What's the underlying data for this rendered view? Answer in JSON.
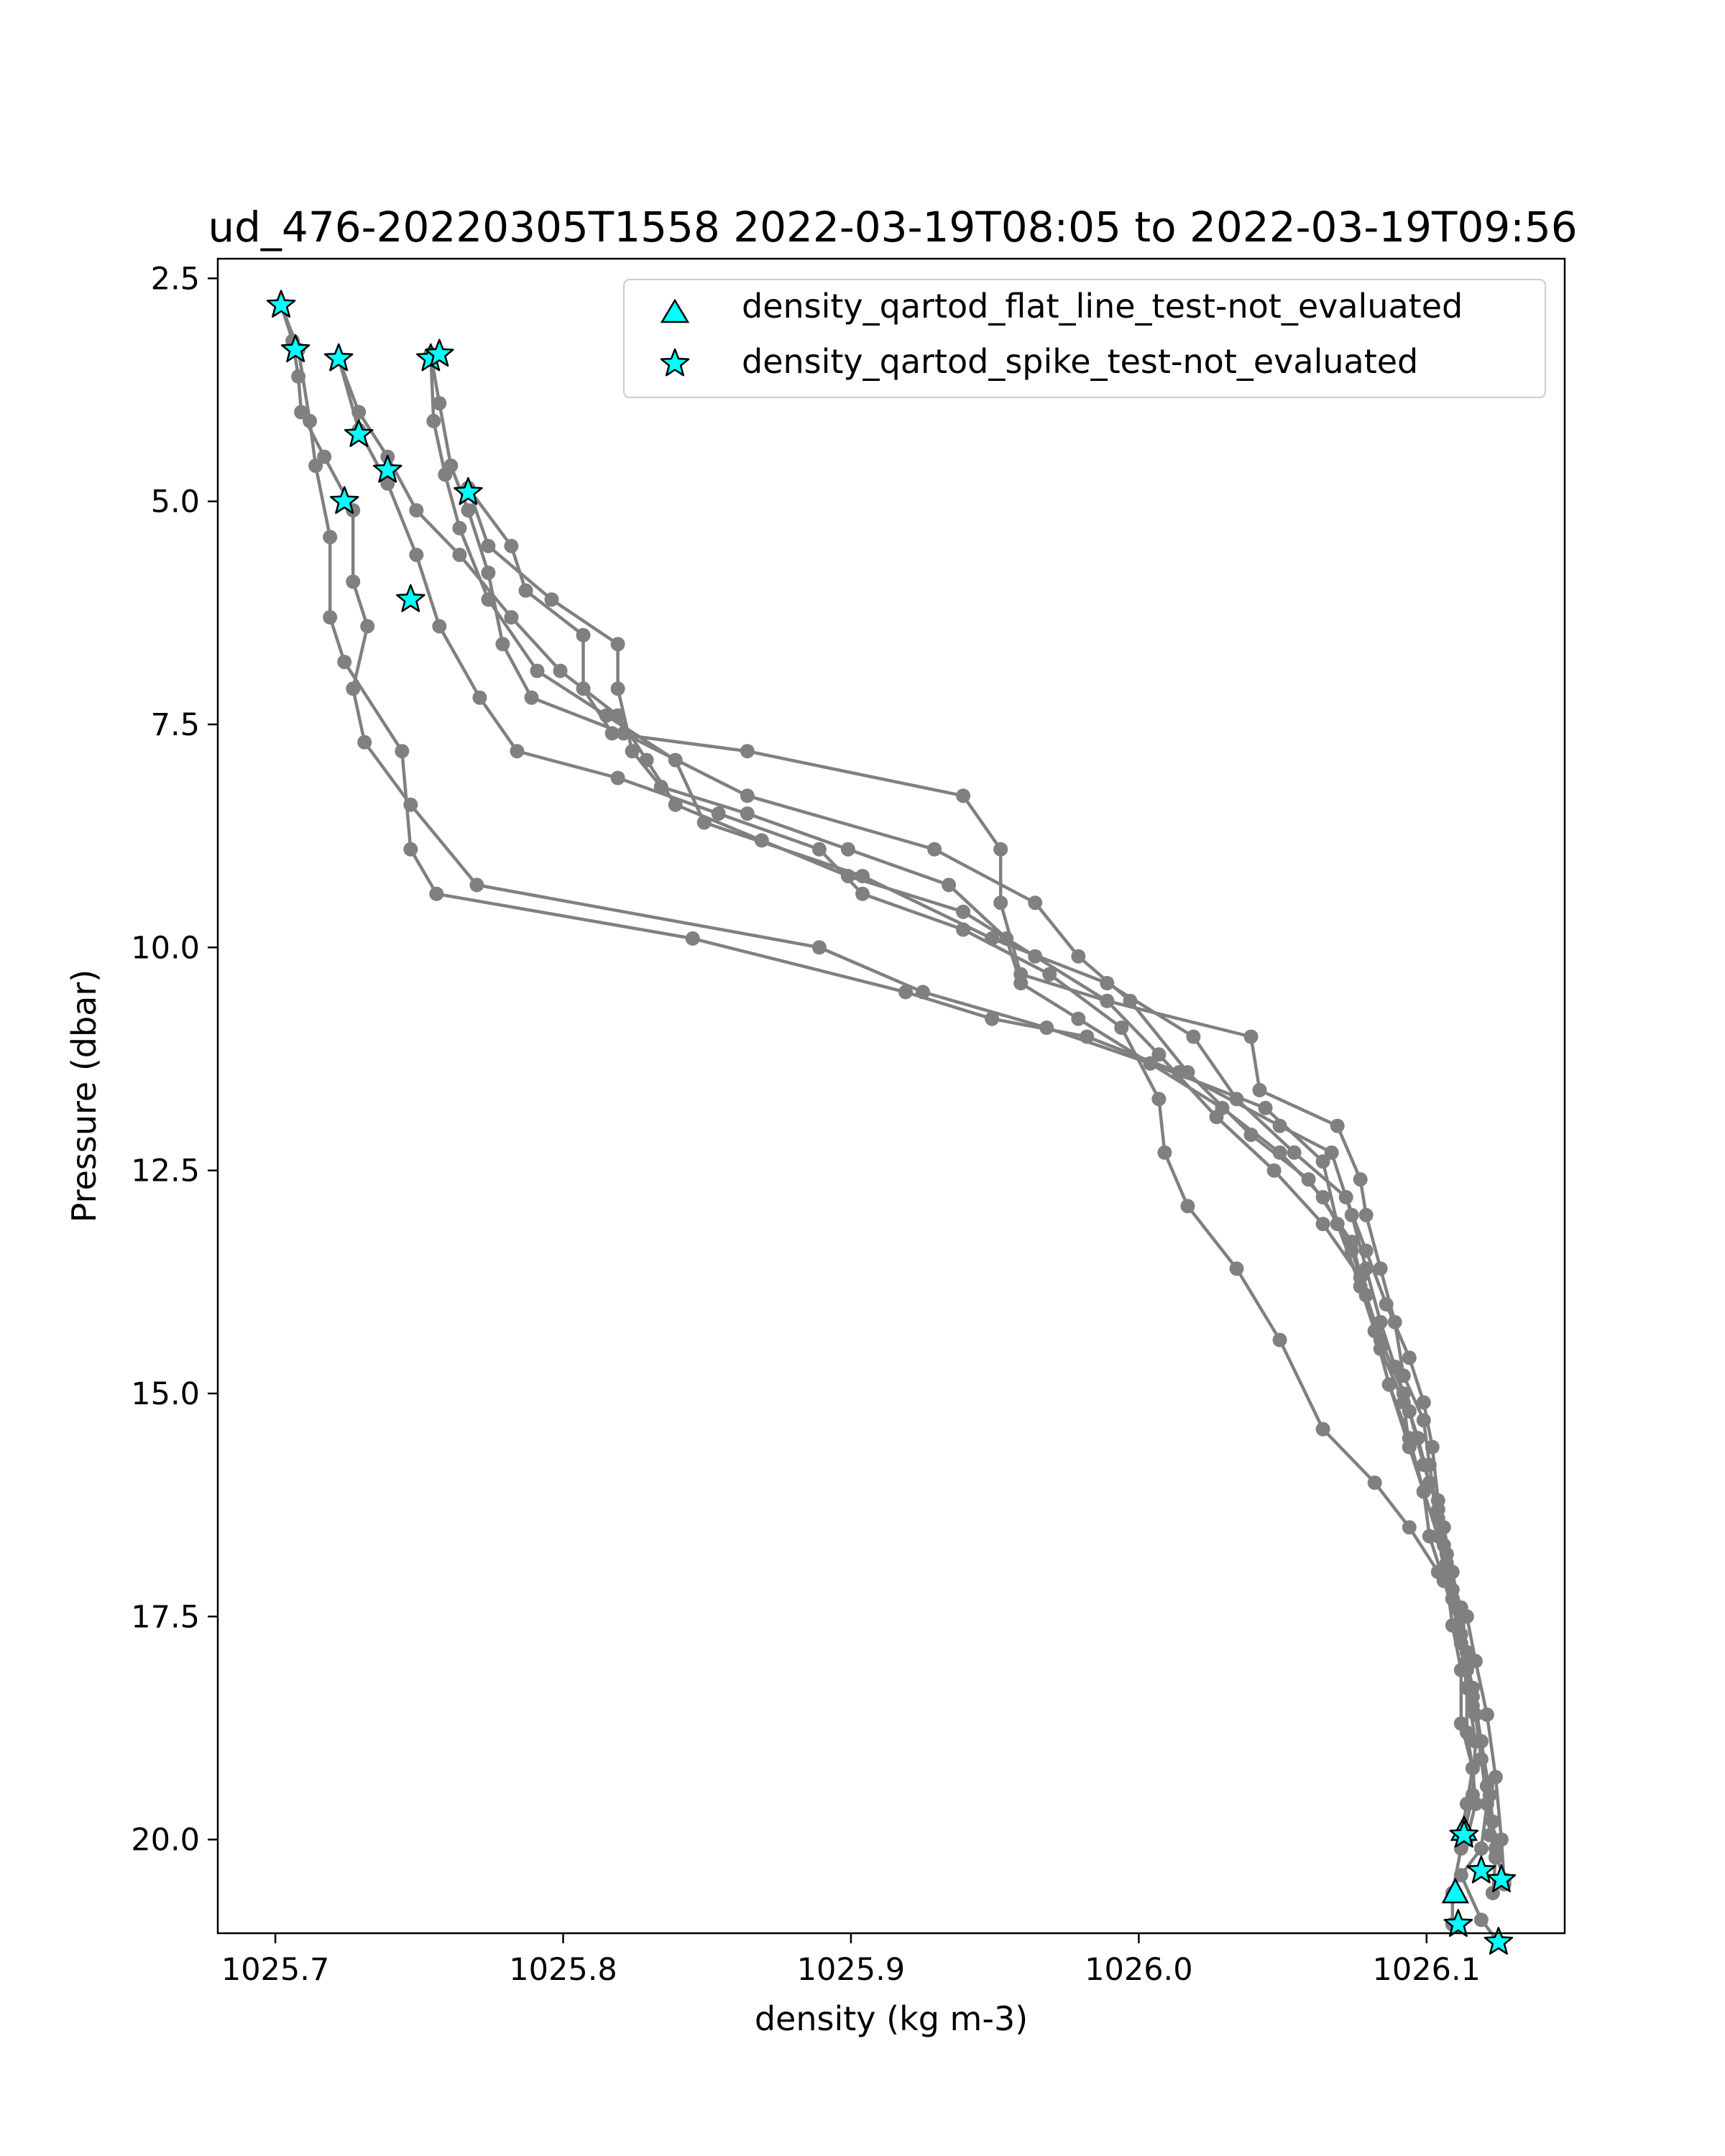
{
  "chart_data": {
    "type": "line",
    "title": "ud_476-20220305T1558 2022-03-19T08:05 to 2022-03-19T09:56",
    "xlabel": "density (kg m-3)",
    "ylabel": "Pressure (dbar)",
    "xlim": [
      1025.68,
      1026.148
    ],
    "ylim": [
      21.05,
      2.28
    ],
    "y_inverted": true,
    "xticks": [
      1025.7,
      1025.8,
      1025.9,
      1026.0,
      1026.1
    ],
    "xtick_labels": [
      "1025.7",
      "1025.8",
      "1025.9",
      "1026.0",
      "1026.1"
    ],
    "yticks": [
      2.5,
      5.0,
      7.5,
      10.0,
      12.5,
      15.0,
      17.5,
      20.0
    ],
    "ytick_labels": [
      "2.5",
      "5.0",
      "7.5",
      "10.0",
      "12.5",
      "15.0",
      "17.5",
      "20.0"
    ],
    "grid": false,
    "line_color": "#808080",
    "marker_color": "#00ffff",
    "legend": {
      "location": "upper right",
      "entries": [
        {
          "label": "density_qartod_flat_line_test-not_evaluated",
          "marker": "triangle"
        },
        {
          "label": "density_qartod_spike_test-not_evaluated",
          "marker": "star"
        }
      ]
    },
    "series": [
      {
        "points": [
          [
            1025.702,
            2.8
          ],
          [
            1025.708,
            3.3
          ],
          [
            1025.712,
            4.1
          ],
          [
            1025.714,
            4.6
          ],
          [
            1025.719,
            5.4
          ],
          [
            1025.719,
            6.3
          ],
          [
            1025.724,
            6.8
          ],
          [
            1025.744,
            7.8
          ],
          [
            1025.747,
            8.9
          ],
          [
            1025.756,
            9.4
          ],
          [
            1025.845,
            9.9
          ],
          [
            1025.919,
            10.5
          ],
          [
            1025.949,
            10.8
          ],
          [
            1025.982,
            11.0
          ],
          [
            1026.014,
            11.4
          ],
          [
            1026.049,
            12.0
          ],
          [
            1026.067,
            12.3
          ],
          [
            1026.074,
            13.0
          ],
          [
            1026.079,
            13.6
          ],
          [
            1026.084,
            14.2
          ],
          [
            1026.089,
            14.7
          ],
          [
            1026.094,
            15.2
          ],
          [
            1026.099,
            15.8
          ],
          [
            1026.104,
            16.3
          ],
          [
            1026.107,
            16.8
          ],
          [
            1026.109,
            17.3
          ],
          [
            1026.112,
            17.8
          ],
          [
            1026.114,
            18.3
          ],
          [
            1026.114,
            18.8
          ],
          [
            1026.116,
            19.2
          ],
          [
            1026.117,
            19.6
          ],
          [
            1026.114,
            20.0
          ]
        ]
      },
      {
        "points": [
          [
            1025.702,
            2.8
          ],
          [
            1025.706,
            3.2
          ],
          [
            1025.708,
            3.6
          ],
          [
            1025.709,
            4.0
          ],
          [
            1025.717,
            4.5
          ],
          [
            1025.727,
            5.1
          ],
          [
            1025.727,
            5.9
          ],
          [
            1025.732,
            6.4
          ],
          [
            1025.727,
            7.1
          ],
          [
            1025.731,
            7.7
          ],
          [
            1025.747,
            8.4
          ],
          [
            1025.77,
            9.3
          ],
          [
            1025.889,
            10.0
          ],
          [
            1025.925,
            10.5
          ],
          [
            1025.968,
            10.9
          ],
          [
            1026.004,
            11.3
          ],
          [
            1026.044,
            11.8
          ],
          [
            1026.064,
            12.4
          ],
          [
            1026.069,
            13.1
          ],
          [
            1026.077,
            13.8
          ],
          [
            1026.082,
            14.3
          ],
          [
            1026.087,
            14.9
          ],
          [
            1026.094,
            15.6
          ],
          [
            1026.099,
            16.1
          ],
          [
            1026.101,
            16.6
          ],
          [
            1026.106,
            17.1
          ],
          [
            1026.111,
            17.6
          ],
          [
            1026.114,
            18.1
          ],
          [
            1026.116,
            18.5
          ],
          [
            1026.119,
            18.9
          ],
          [
            1026.121,
            19.4
          ],
          [
            1026.123,
            19.8
          ],
          [
            1026.124,
            20.2
          ],
          [
            1026.123,
            20.6
          ]
        ]
      },
      {
        "points": [
          [
            1025.722,
            3.4
          ],
          [
            1025.729,
            4.2
          ],
          [
            1025.739,
            4.8
          ],
          [
            1025.749,
            5.6
          ],
          [
            1025.757,
            6.4
          ],
          [
            1025.771,
            7.2
          ],
          [
            1025.784,
            7.8
          ],
          [
            1025.819,
            8.1
          ],
          [
            1025.854,
            8.5
          ],
          [
            1025.889,
            8.9
          ],
          [
            1025.904,
            9.4
          ],
          [
            1025.939,
            9.8
          ],
          [
            1025.969,
            10.3
          ],
          [
            1025.994,
            10.9
          ],
          [
            1026.007,
            11.7
          ],
          [
            1026.009,
            12.3
          ],
          [
            1026.017,
            12.9
          ],
          [
            1026.034,
            13.6
          ],
          [
            1026.049,
            14.4
          ],
          [
            1026.064,
            15.4
          ],
          [
            1026.082,
            16.0
          ],
          [
            1026.094,
            16.5
          ],
          [
            1026.104,
            17.0
          ],
          [
            1026.114,
            17.5
          ],
          [
            1026.117,
            18.0
          ],
          [
            1026.121,
            18.6
          ],
          [
            1026.124,
            19.3
          ],
          [
            1026.126,
            20.0
          ],
          [
            1026.127,
            20.5
          ]
        ]
      },
      {
        "points": [
          [
            1025.722,
            3.4
          ],
          [
            1025.729,
            4.0
          ],
          [
            1025.739,
            4.5
          ],
          [
            1025.749,
            5.1
          ],
          [
            1025.764,
            5.6
          ],
          [
            1025.782,
            6.3
          ],
          [
            1025.799,
            6.9
          ],
          [
            1025.819,
            7.4
          ],
          [
            1025.829,
            7.9
          ],
          [
            1025.839,
            8.4
          ],
          [
            1025.869,
            8.8
          ],
          [
            1025.899,
            9.2
          ],
          [
            1025.939,
            9.6
          ],
          [
            1025.964,
            10.1
          ],
          [
            1025.989,
            10.6
          ],
          [
            1026.007,
            11.2
          ],
          [
            1026.027,
            11.9
          ],
          [
            1026.047,
            12.5
          ],
          [
            1026.064,
            13.1
          ],
          [
            1026.077,
            13.7
          ],
          [
            1026.082,
            14.3
          ],
          [
            1026.087,
            14.9
          ],
          [
            1026.094,
            15.5
          ],
          [
            1026.099,
            16.1
          ],
          [
            1026.104,
            16.6
          ],
          [
            1026.109,
            17.2
          ],
          [
            1026.112,
            17.7
          ],
          [
            1026.116,
            18.3
          ],
          [
            1026.119,
            18.9
          ],
          [
            1026.122,
            19.5
          ],
          [
            1026.124,
            20.1
          ]
        ]
      },
      {
        "points": [
          [
            1025.754,
            3.35
          ],
          [
            1025.757,
            3.9
          ],
          [
            1025.761,
            4.6
          ],
          [
            1025.767,
            5.1
          ],
          [
            1025.774,
            5.8
          ],
          [
            1025.779,
            6.6
          ],
          [
            1025.789,
            7.2
          ],
          [
            1025.821,
            7.6
          ],
          [
            1025.864,
            8.3
          ],
          [
            1025.929,
            8.9
          ],
          [
            1025.964,
            9.5
          ],
          [
            1025.979,
            10.1
          ],
          [
            1025.997,
            10.6
          ],
          [
            1026.017,
            11.4
          ],
          [
            1026.039,
            12.1
          ],
          [
            1026.059,
            12.6
          ],
          [
            1026.074,
            13.3
          ],
          [
            1026.079,
            13.9
          ],
          [
            1026.084,
            14.4
          ],
          [
            1026.092,
            15.0
          ],
          [
            1026.097,
            15.5
          ],
          [
            1026.101,
            16.0
          ],
          [
            1026.106,
            16.5
          ],
          [
            1026.109,
            17.0
          ],
          [
            1026.112,
            17.5
          ],
          [
            1026.114,
            18.0
          ],
          [
            1026.117,
            18.6
          ],
          [
            1026.119,
            19.1
          ],
          [
            1026.121,
            19.6
          ],
          [
            1026.119,
            20.1
          ],
          [
            1026.112,
            20.4
          ],
          [
            1026.119,
            20.9
          ],
          [
            1026.125,
            21.15
          ]
        ]
      },
      {
        "points": [
          [
            1025.754,
            3.35
          ],
          [
            1025.755,
            4.1
          ],
          [
            1025.759,
            4.7
          ],
          [
            1025.764,
            5.3
          ],
          [
            1025.774,
            6.1
          ],
          [
            1025.791,
            6.9
          ],
          [
            1025.815,
            7.4
          ],
          [
            1025.839,
            7.9
          ],
          [
            1025.849,
            8.6
          ],
          [
            1025.904,
            9.2
          ],
          [
            1025.949,
            9.9
          ],
          [
            1025.989,
            10.4
          ],
          [
            1026.019,
            11.0
          ],
          [
            1026.034,
            11.7
          ],
          [
            1026.054,
            12.3
          ],
          [
            1026.072,
            12.8
          ],
          [
            1026.079,
            13.4
          ],
          [
            1026.086,
            14.0
          ],
          [
            1026.094,
            14.6
          ],
          [
            1026.099,
            15.1
          ],
          [
            1026.102,
            15.6
          ],
          [
            1026.104,
            16.2
          ],
          [
            1026.106,
            16.7
          ],
          [
            1026.109,
            17.3
          ],
          [
            1026.112,
            17.8
          ],
          [
            1026.114,
            18.3
          ],
          [
            1026.117,
            18.9
          ],
          [
            1026.116,
            19.5
          ],
          [
            1026.112,
            20.1
          ],
          [
            1026.109,
            20.6
          ],
          [
            1026.109,
            20.95
          ]
        ]
      },
      {
        "points": [
          [
            1025.767,
            4.85
          ],
          [
            1025.774,
            5.5
          ],
          [
            1025.796,
            6.1
          ],
          [
            1025.819,
            6.6
          ],
          [
            1025.819,
            7.1
          ],
          [
            1025.824,
            7.8
          ],
          [
            1025.834,
            8.2
          ],
          [
            1025.864,
            8.5
          ],
          [
            1025.899,
            8.9
          ],
          [
            1025.934,
            9.3
          ],
          [
            1025.954,
            9.9
          ],
          [
            1025.959,
            10.4
          ],
          [
            1025.979,
            10.8
          ],
          [
            1026.004,
            11.3
          ],
          [
            1026.029,
            11.8
          ],
          [
            1026.049,
            12.3
          ],
          [
            1026.064,
            12.8
          ],
          [
            1026.074,
            13.4
          ],
          [
            1026.079,
            13.9
          ],
          [
            1026.084,
            14.5
          ],
          [
            1026.092,
            15.1
          ],
          [
            1026.094,
            15.6
          ],
          [
            1026.099,
            16.1
          ],
          [
            1026.104,
            16.6
          ],
          [
            1026.107,
            17.1
          ],
          [
            1026.109,
            17.6
          ],
          [
            1026.112,
            18.1
          ],
          [
            1026.112,
            18.7
          ],
          [
            1026.116,
            19.2
          ],
          [
            1026.114,
            19.6
          ],
          [
            1026.112,
            19.95
          ]
        ]
      },
      {
        "points": [
          [
            1025.767,
            4.85
          ],
          [
            1025.782,
            5.5
          ],
          [
            1025.787,
            6.0
          ],
          [
            1025.807,
            6.5
          ],
          [
            1025.807,
            7.1
          ],
          [
            1025.817,
            7.6
          ],
          [
            1025.864,
            7.8
          ],
          [
            1025.939,
            8.3
          ],
          [
            1025.952,
            8.9
          ],
          [
            1025.952,
            9.5
          ],
          [
            1025.959,
            10.3
          ],
          [
            1025.989,
            10.6
          ],
          [
            1026.039,
            11.0
          ],
          [
            1026.042,
            11.6
          ],
          [
            1026.069,
            12.0
          ],
          [
            1026.077,
            12.6
          ],
          [
            1026.079,
            13.0
          ],
          [
            1026.084,
            13.6
          ],
          [
            1026.089,
            14.2
          ],
          [
            1026.092,
            14.8
          ],
          [
            1026.099,
            15.3
          ],
          [
            1026.101,
            15.8
          ],
          [
            1026.104,
            16.4
          ],
          [
            1026.107,
            16.9
          ],
          [
            1026.112,
            17.4
          ],
          [
            1026.114,
            17.9
          ],
          [
            1026.116,
            18.4
          ],
          [
            1026.119,
            18.9
          ],
          [
            1026.121,
            19.4
          ],
          [
            1026.122,
            19.95
          ],
          [
            1026.127,
            20.45
          ]
        ]
      }
    ],
    "flagged_spike": [
      [
        1025.702,
        2.8
      ],
      [
        1025.707,
        3.3
      ],
      [
        1025.722,
        3.4
      ],
      [
        1025.754,
        3.4
      ],
      [
        1025.757,
        3.35
      ],
      [
        1025.729,
        4.25
      ],
      [
        1025.739,
        4.65
      ],
      [
        1025.724,
        5.0
      ],
      [
        1025.767,
        4.9
      ],
      [
        1025.747,
        6.1
      ],
      [
        1026.113,
        19.95
      ],
      [
        1026.119,
        20.35
      ],
      [
        1026.126,
        20.45
      ],
      [
        1026.111,
        20.95
      ],
      [
        1026.125,
        21.15
      ]
    ],
    "flagged_flat_line": [
      [
        1026.113,
        19.9
      ],
      [
        1026.11,
        20.6
      ]
    ]
  }
}
